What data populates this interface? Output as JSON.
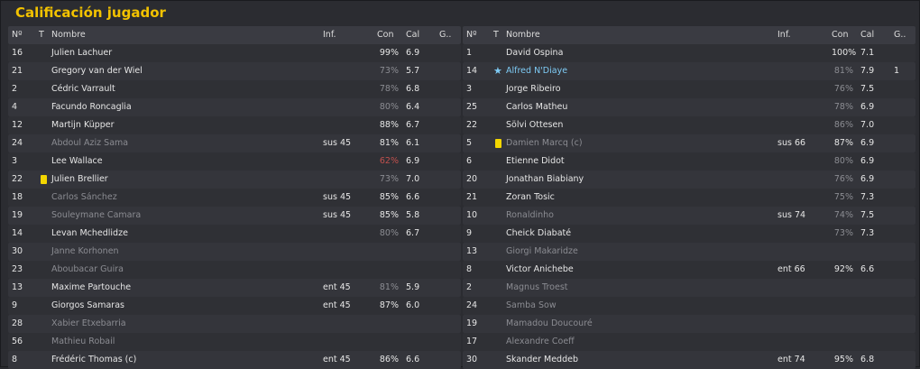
{
  "title": "Calificación jugador",
  "headers": {
    "no": "Nº",
    "t": "T",
    "name": "Nombre",
    "inf": "Inf.",
    "con": "Con",
    "cal": "Cal",
    "g": "G.."
  },
  "left": [
    {
      "no": "16",
      "name": "Julien Lachuer",
      "inf": "",
      "con": "99%",
      "cal": "6.9",
      "g": "",
      "sub": false,
      "card": false,
      "con_style": "normal"
    },
    {
      "no": "21",
      "name": "Gregory van der Wiel",
      "inf": "",
      "con": "73%",
      "cal": "5.7",
      "g": "",
      "sub": false,
      "card": false,
      "con_style": "low"
    },
    {
      "no": "2",
      "name": "Cédric Varrault",
      "inf": "",
      "con": "78%",
      "cal": "6.8",
      "g": "",
      "sub": false,
      "card": false,
      "con_style": "low"
    },
    {
      "no": "4",
      "name": "Facundo Roncaglia",
      "inf": "",
      "con": "80%",
      "cal": "6.4",
      "g": "",
      "sub": false,
      "card": false,
      "con_style": "low"
    },
    {
      "no": "12",
      "name": "Martijn Küpper",
      "inf": "",
      "con": "88%",
      "cal": "6.7",
      "g": "",
      "sub": false,
      "card": false,
      "con_style": "normal"
    },
    {
      "no": "24",
      "name": "Abdoul Aziz Sama",
      "inf": "sus 45",
      "con": "81%",
      "cal": "6.1",
      "g": "",
      "sub": true,
      "card": false,
      "con_style": "normal"
    },
    {
      "no": "3",
      "name": "Lee Wallace",
      "inf": "",
      "con": "62%",
      "cal": "6.9",
      "g": "",
      "sub": false,
      "card": false,
      "con_style": "red"
    },
    {
      "no": "22",
      "name": "Julien Brellier",
      "inf": "",
      "con": "73%",
      "cal": "7.0",
      "g": "",
      "sub": false,
      "card": true,
      "con_style": "low"
    },
    {
      "no": "18",
      "name": "Carlos Sánchez",
      "inf": "sus 45",
      "con": "85%",
      "cal": "6.6",
      "g": "",
      "sub": true,
      "card": false,
      "con_style": "normal"
    },
    {
      "no": "19",
      "name": "Souleymane Camara",
      "inf": "sus 45",
      "con": "85%",
      "cal": "5.8",
      "g": "",
      "sub": true,
      "card": false,
      "con_style": "normal"
    },
    {
      "no": "14",
      "name": "Levan Mchedlidze",
      "inf": "",
      "con": "80%",
      "cal": "6.7",
      "g": "",
      "sub": false,
      "card": false,
      "con_style": "low"
    },
    {
      "no": "30",
      "name": "Janne Korhonen",
      "inf": "",
      "con": "",
      "cal": "",
      "g": "",
      "sub": true,
      "card": false,
      "con_style": "normal"
    },
    {
      "no": "23",
      "name": "Aboubacar Guira",
      "inf": "",
      "con": "",
      "cal": "",
      "g": "",
      "sub": true,
      "card": false,
      "con_style": "normal"
    },
    {
      "no": "13",
      "name": "Maxime Partouche",
      "inf": "ent 45",
      "con": "81%",
      "cal": "5.9",
      "g": "",
      "sub": false,
      "card": false,
      "con_style": "low"
    },
    {
      "no": "9",
      "name": "Giorgos Samaras",
      "inf": "ent 45",
      "con": "87%",
      "cal": "6.0",
      "g": "",
      "sub": false,
      "card": false,
      "con_style": "normal"
    },
    {
      "no": "28",
      "name": "Xabier Etxebarria",
      "inf": "",
      "con": "",
      "cal": "",
      "g": "",
      "sub": true,
      "card": false,
      "con_style": "normal"
    },
    {
      "no": "56",
      "name": "Mathieu Robail",
      "inf": "",
      "con": "",
      "cal": "",
      "g": "",
      "sub": true,
      "card": false,
      "con_style": "normal"
    },
    {
      "no": "8",
      "name": "Frédéric Thomas (c)",
      "inf": "ent 45",
      "con": "86%",
      "cal": "6.6",
      "g": "",
      "sub": false,
      "card": false,
      "con_style": "normal"
    }
  ],
  "right": [
    {
      "no": "1",
      "name": "David Ospina",
      "inf": "",
      "con": "100%",
      "cal": "7.1",
      "g": "",
      "sub": false,
      "card": false,
      "star": false,
      "con_style": "normal"
    },
    {
      "no": "14",
      "name": "Alfred N'Diaye",
      "inf": "",
      "con": "81%",
      "cal": "7.9",
      "g": "1",
      "sub": false,
      "card": false,
      "star": true,
      "con_style": "low"
    },
    {
      "no": "3",
      "name": "Jorge Ribeiro",
      "inf": "",
      "con": "76%",
      "cal": "7.5",
      "g": "",
      "sub": false,
      "card": false,
      "star": false,
      "con_style": "low"
    },
    {
      "no": "25",
      "name": "Carlos Matheu",
      "inf": "",
      "con": "78%",
      "cal": "6.9",
      "g": "",
      "sub": false,
      "card": false,
      "star": false,
      "con_style": "low"
    },
    {
      "no": "22",
      "name": "Sölvi Ottesen",
      "inf": "",
      "con": "86%",
      "cal": "7.0",
      "g": "",
      "sub": false,
      "card": false,
      "star": false,
      "con_style": "low"
    },
    {
      "no": "5",
      "name": "Damien Marcq (c)",
      "inf": "sus 66",
      "con": "87%",
      "cal": "6.9",
      "g": "",
      "sub": true,
      "card": true,
      "star": false,
      "con_style": "normal"
    },
    {
      "no": "6",
      "name": "Etienne Didot",
      "inf": "",
      "con": "80%",
      "cal": "6.9",
      "g": "",
      "sub": false,
      "card": false,
      "star": false,
      "con_style": "low"
    },
    {
      "no": "20",
      "name": "Jonathan Biabiany",
      "inf": "",
      "con": "76%",
      "cal": "6.9",
      "g": "",
      "sub": false,
      "card": false,
      "star": false,
      "con_style": "low"
    },
    {
      "no": "21",
      "name": "Zoran Tosic",
      "inf": "",
      "con": "75%",
      "cal": "7.3",
      "g": "",
      "sub": false,
      "card": false,
      "star": false,
      "con_style": "low"
    },
    {
      "no": "10",
      "name": "Ronaldinho",
      "inf": "sus 74",
      "con": "74%",
      "cal": "7.5",
      "g": "",
      "sub": true,
      "card": false,
      "star": false,
      "con_style": "low"
    },
    {
      "no": "9",
      "name": "Cheick Diabaté",
      "inf": "",
      "con": "73%",
      "cal": "7.3",
      "g": "",
      "sub": false,
      "card": false,
      "star": false,
      "con_style": "low"
    },
    {
      "no": "13",
      "name": "Giorgi Makaridze",
      "inf": "",
      "con": "",
      "cal": "",
      "g": "",
      "sub": true,
      "card": false,
      "star": false,
      "con_style": "normal"
    },
    {
      "no": "8",
      "name": "Victor Anichebe",
      "inf": "ent 66",
      "con": "92%",
      "cal": "6.6",
      "g": "",
      "sub": false,
      "card": false,
      "star": false,
      "con_style": "normal"
    },
    {
      "no": "2",
      "name": "Magnus Troest",
      "inf": "",
      "con": "",
      "cal": "",
      "g": "",
      "sub": true,
      "card": false,
      "star": false,
      "con_style": "normal"
    },
    {
      "no": "24",
      "name": "Samba Sow",
      "inf": "",
      "con": "",
      "cal": "",
      "g": "",
      "sub": true,
      "card": false,
      "star": false,
      "con_style": "normal"
    },
    {
      "no": "19",
      "name": "Mamadou Doucouré",
      "inf": "",
      "con": "",
      "cal": "",
      "g": "",
      "sub": true,
      "card": false,
      "star": false,
      "con_style": "normal"
    },
    {
      "no": "17",
      "name": "Alexandre Coeff",
      "inf": "",
      "con": "",
      "cal": "",
      "g": "",
      "sub": true,
      "card": false,
      "star": false,
      "con_style": "normal"
    },
    {
      "no": "30",
      "name": "Skander Meddeb",
      "inf": "ent 74",
      "con": "95%",
      "cal": "6.8",
      "g": "",
      "sub": false,
      "card": false,
      "star": false,
      "con_style": "normal"
    }
  ],
  "colors": {
    "title": "#f2c200",
    "card": "#f3d600",
    "highlight": "#7ecbf5",
    "low_condition": "#c0504d"
  }
}
